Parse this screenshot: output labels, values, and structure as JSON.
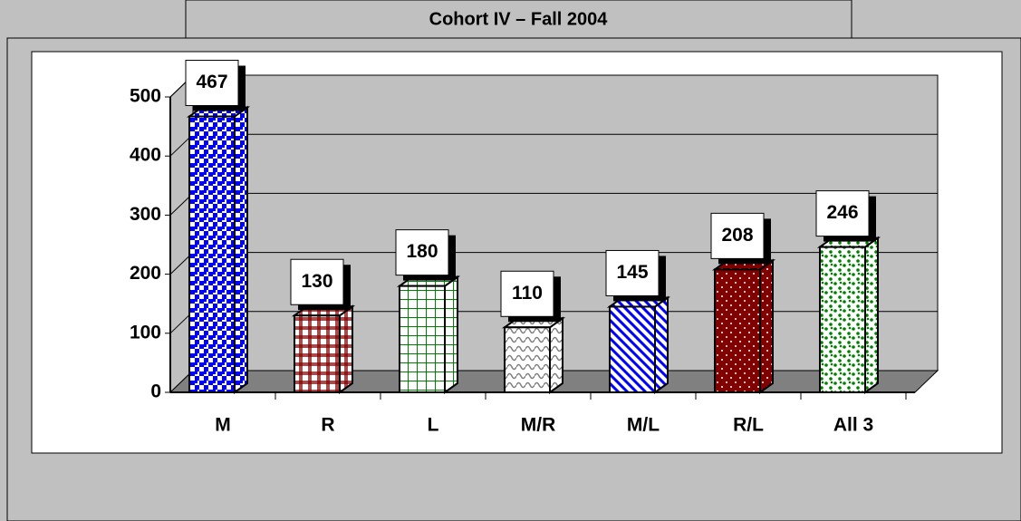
{
  "chart_data": {
    "type": "bar3d",
    "title": "Cohort IV – Fall 2004",
    "categories": [
      "M",
      "R",
      "L",
      "M/R",
      "M/L",
      "R/L",
      "All 3"
    ],
    "values": [
      467,
      130,
      180,
      110,
      145,
      208,
      246
    ],
    "colors": [
      "#0000ff",
      "#800000",
      "#008000",
      "#808080",
      "#0000ff",
      "#800000",
      "#008000"
    ],
    "ylim": [
      0,
      500
    ],
    "yticks": [
      0,
      100,
      200,
      300,
      400,
      500
    ],
    "grid": true
  }
}
